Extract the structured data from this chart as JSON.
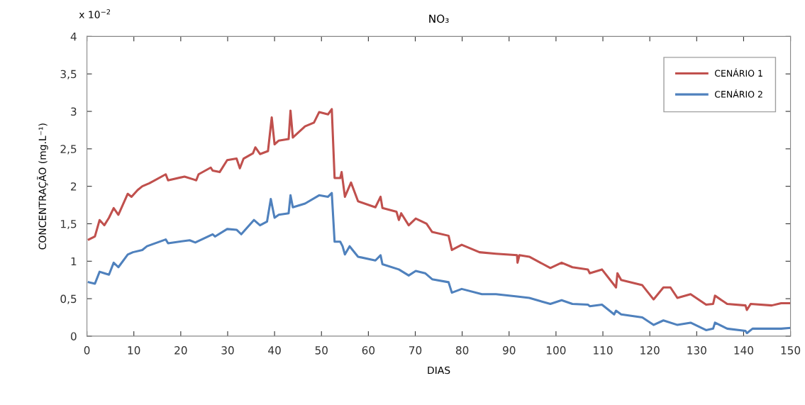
{
  "chart_data": {
    "type": "line",
    "title": "NO₃",
    "xlabel": "DIAS",
    "ylabel": "CONCENTRAÇÃO (mg.L⁻¹)",
    "annotations": [
      "x 10$^{−2}$"
    ],
    "xlim": [
      0,
      150
    ],
    "xticks": [
      0,
      10,
      20,
      30,
      40,
      50,
      60,
      70,
      80,
      90,
      100,
      110,
      120,
      130,
      140,
      150
    ],
    "ylim": [
      0,
      4
    ],
    "yticks": [
      0,
      {
        "value": 0.5,
        "label": "0,5"
      },
      1,
      {
        "value": 1.5,
        "label": "1,5"
      },
      2,
      {
        "value": 2.5,
        "label": "2,5"
      },
      3,
      {
        "value": 3.5,
        "label": "3,5"
      },
      4
    ],
    "grid": false,
    "legend": "top right",
    "marker": "none",
    "line_style": "solid",
    "series": [
      {
        "name": "CENÁRIO 1",
        "color": "#c0504d",
        "x": [
          0.4,
          1.7,
          2.7,
          3.7,
          4.7,
          5.7,
          6.7,
          8.7,
          9.5,
          10.8,
          11.8,
          13.3,
          16.8,
          17.3,
          20.8,
          22.8,
          23.3,
          23.8,
          26.4,
          26.8,
          28.3,
          29.9,
          31.9,
          32.6,
          33.4,
          35.4,
          35.9,
          36.9,
          38.6,
          39.4,
          40,
          40.9,
          43,
          43.4,
          43.9,
          46.5,
          48.4,
          49.5,
          51.4,
          52.2,
          52.8,
          54,
          54.3,
          55,
          56.3,
          57.8,
          61.5,
          62.6,
          63,
          66,
          66.5,
          67,
          68.6,
          70.1,
          72.4,
          73.6,
          77.1,
          77.8,
          79.9,
          83.7,
          87.2,
          91.7,
          91.8,
          92.2,
          94.3,
          98.8,
          101.2,
          103.5,
          106.8,
          107.2,
          109.8,
          111.8,
          112.8,
          113.1,
          113.9,
          118.4,
          120.8,
          122.9,
          124.4,
          125.9,
          128.7,
          132,
          133.5,
          133.9,
          136.5,
          140.4,
          140.7,
          141.5,
          146,
          148,
          150
        ],
        "values": [
          1.29,
          1.33,
          1.55,
          1.48,
          1.58,
          1.71,
          1.62,
          1.9,
          1.86,
          1.95,
          2.0,
          2.04,
          2.16,
          2.08,
          2.13,
          2.09,
          2.08,
          2.16,
          2.25,
          2.21,
          2.19,
          2.35,
          2.37,
          2.24,
          2.37,
          2.44,
          2.52,
          2.43,
          2.47,
          2.92,
          2.56,
          2.61,
          2.63,
          3.01,
          2.65,
          2.8,
          2.85,
          2.99,
          2.96,
          3.03,
          2.11,
          2.11,
          2.19,
          1.86,
          2.05,
          1.8,
          1.72,
          1.86,
          1.71,
          1.66,
          1.55,
          1.64,
          1.48,
          1.57,
          1.5,
          1.39,
          1.34,
          1.15,
          1.22,
          1.12,
          1.1,
          1.08,
          0.98,
          1.08,
          1.06,
          0.91,
          0.98,
          0.92,
          0.89,
          0.84,
          0.89,
          0.73,
          0.65,
          0.84,
          0.75,
          0.68,
          0.49,
          0.65,
          0.65,
          0.51,
          0.56,
          0.42,
          0.43,
          0.54,
          0.43,
          0.41,
          0.35,
          0.43,
          0.41,
          0.44,
          0.44
        ]
      },
      {
        "name": "CENÁRIO 2",
        "color": "#4f81bd",
        "x": [
          0.4,
          1.7,
          2.7,
          3.7,
          4.7,
          5.7,
          6.7,
          8.7,
          9.8,
          11.8,
          12.8,
          16.8,
          17.3,
          21.9,
          23.1,
          26.8,
          27.3,
          29.9,
          31.9,
          32.9,
          35.6,
          36.9,
          38.4,
          39.2,
          40,
          40.9,
          43,
          43.4,
          43.9,
          46.5,
          49.5,
          51.4,
          52.2,
          52.8,
          54,
          54.5,
          55,
          56,
          57.8,
          61.5,
          62.6,
          63,
          66.5,
          68.6,
          70.1,
          72.1,
          73.6,
          77.1,
          77.8,
          79.9,
          84.2,
          87.2,
          91.7,
          94.3,
          98.8,
          101.2,
          103.5,
          106.8,
          107.2,
          109.8,
          112.4,
          112.8,
          113.9,
          118.4,
          120.8,
          122.9,
          125.9,
          128.7,
          132,
          133.5,
          133.9,
          136.5,
          140.4,
          140.7,
          141.9,
          148,
          150
        ],
        "values": [
          0.72,
          0.7,
          0.86,
          0.84,
          0.82,
          0.98,
          0.92,
          1.09,
          1.12,
          1.15,
          1.2,
          1.29,
          1.24,
          1.28,
          1.25,
          1.36,
          1.33,
          1.43,
          1.42,
          1.36,
          1.55,
          1.48,
          1.53,
          1.83,
          1.58,
          1.62,
          1.64,
          1.88,
          1.72,
          1.77,
          1.88,
          1.86,
          1.91,
          1.26,
          1.26,
          1.2,
          1.09,
          1.2,
          1.06,
          1.01,
          1.08,
          0.96,
          0.89,
          0.81,
          0.87,
          0.84,
          0.76,
          0.72,
          0.58,
          0.63,
          0.56,
          0.56,
          0.53,
          0.51,
          0.43,
          0.48,
          0.43,
          0.42,
          0.4,
          0.42,
          0.29,
          0.34,
          0.29,
          0.25,
          0.15,
          0.21,
          0.15,
          0.18,
          0.08,
          0.1,
          0.18,
          0.1,
          0.07,
          0.04,
          0.1,
          0.1,
          0.11
        ]
      }
    ]
  }
}
